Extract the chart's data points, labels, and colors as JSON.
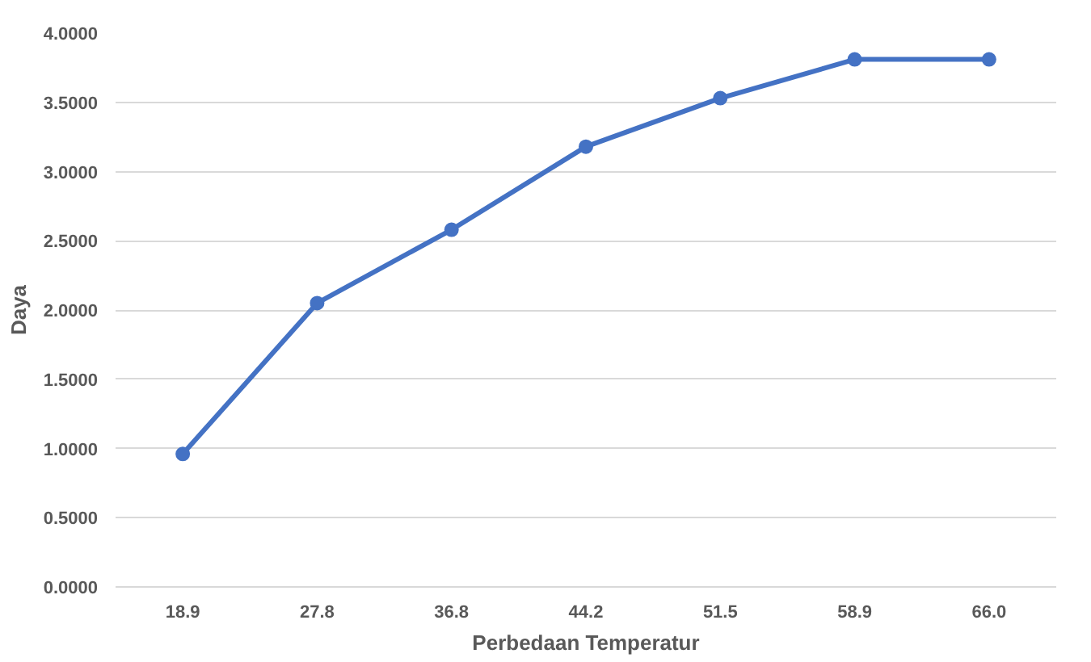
{
  "chart_data": {
    "type": "line",
    "xlabel": "Perbedaan Temperatur",
    "ylabel": "Daya",
    "categories": [
      "18.9",
      "27.8",
      "36.8",
      "44.2",
      "51.5",
      "58.9",
      "66.0"
    ],
    "series": [
      {
        "color": "#4472c4",
        "values": [
          0.96,
          2.05,
          2.58,
          3.18,
          3.53,
          3.81,
          3.81
        ]
      }
    ],
    "ylim": [
      0,
      4
    ],
    "yticks": [
      {
        "value": 0,
        "label": "0.0000"
      },
      {
        "value": 0.5,
        "label": "0.5000"
      },
      {
        "value": 1,
        "label": "1.0000"
      },
      {
        "value": 1.5,
        "label": "1.5000"
      },
      {
        "value": 2,
        "label": "2.0000"
      },
      {
        "value": 2.5,
        "label": "2.5000"
      },
      {
        "value": 3,
        "label": "3.0000"
      },
      {
        "value": 3.5,
        "label": "3.5000"
      },
      {
        "value": 4,
        "label": "4.0000"
      }
    ],
    "grid": "y",
    "marker": "circle",
    "line_style": "solid"
  }
}
